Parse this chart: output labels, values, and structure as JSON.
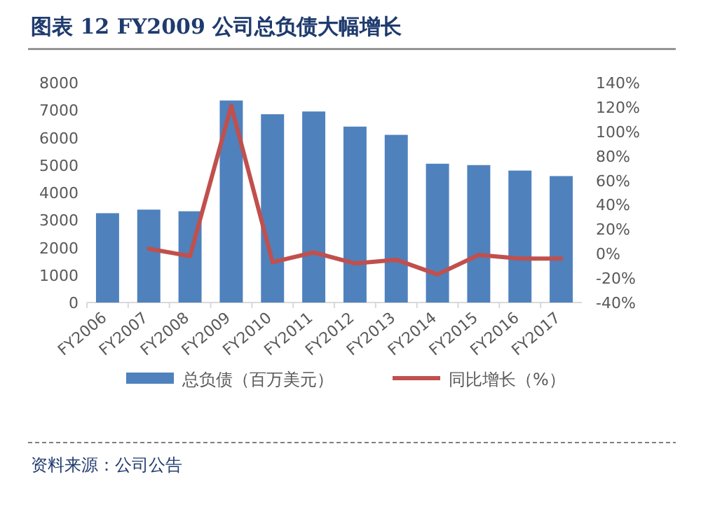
{
  "chart_data": {
    "type": "bar",
    "title": "图表 12   FY2009 公司总负债大幅增长",
    "categories": [
      "FY2006",
      "FY2007",
      "FY2008",
      "FY2009",
      "FY2010",
      "FY2011",
      "FY2012",
      "FY2013",
      "FY2014",
      "FY2015",
      "FY2016",
      "FY2017"
    ],
    "series": [
      {
        "name": "总负债（百万美元）",
        "color": "#4f81bd",
        "values": [
          3250,
          3380,
          3320,
          7350,
          6850,
          6950,
          6400,
          6100,
          5050,
          5000,
          4800,
          4600
        ]
      },
      {
        "name": "同比增长（%）",
        "type": "line",
        "axis": "y2",
        "color": "#c0504d",
        "values": [
          null,
          4,
          -2,
          121,
          -7,
          1,
          -8,
          -5,
          -17,
          -1,
          -4,
          -4
        ]
      }
    ],
    "ylim": [
      0,
      8000
    ],
    "yticks": [
      0,
      1000,
      2000,
      3000,
      4000,
      5000,
      6000,
      7000,
      8000
    ],
    "y2lim": [
      -40,
      140
    ],
    "y2ticks": [
      {
        "value": -40,
        "label": "-40%"
      },
      {
        "value": -20,
        "label": "-20%"
      },
      {
        "value": 0,
        "label": "0%"
      },
      {
        "value": 20,
        "label": "20%"
      },
      {
        "value": 40,
        "label": "40%"
      },
      {
        "value": 60,
        "label": "60%"
      },
      {
        "value": 80,
        "label": "80%"
      },
      {
        "value": 100,
        "label": "100%"
      },
      {
        "value": 120,
        "label": "120%"
      },
      {
        "value": 140,
        "label": "140%"
      }
    ],
    "legend": "bottom",
    "annotations": [
      "资料来源：公司公告"
    ]
  }
}
